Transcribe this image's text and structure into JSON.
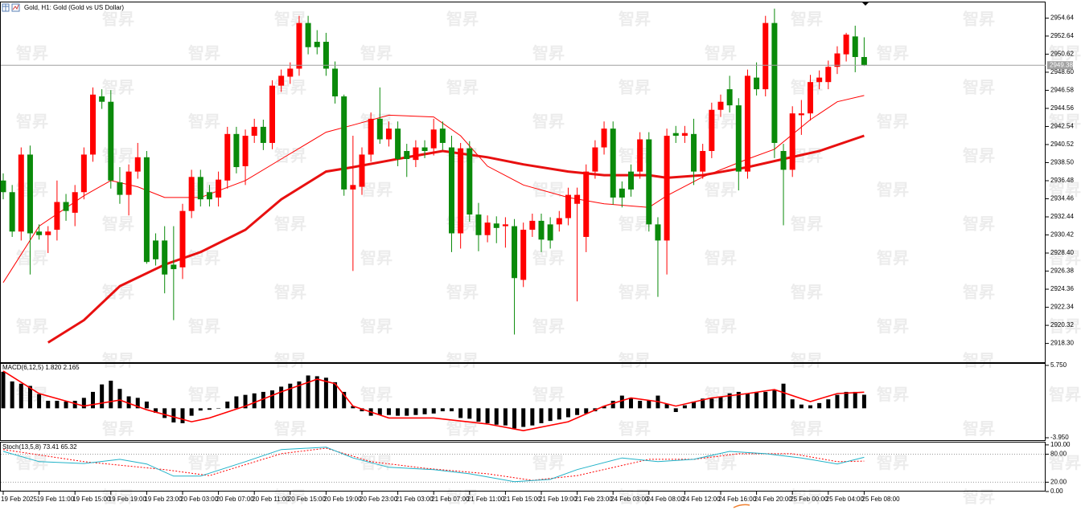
{
  "watermark": "智昇",
  "chart_data": [
    {
      "type": "candlestick",
      "title": "Gold, H1:  Gold (Gold vs US Dollar)",
      "up_color": "#ff0000",
      "down_color": "#0a8a0a",
      "ylim": [
        2916.2,
        2956.4
      ],
      "yticks": [
        2954.64,
        2952.64,
        2950.62,
        {
          "value": 2948.6,
          "label": "2948.60"
        },
        2946.58,
        2944.56,
        2942.54,
        2940.52,
        {
          "value": 2938.5,
          "label": "2938.50"
        },
        2936.48,
        2934.46,
        2932.44,
        2930.42,
        {
          "value": 2928.4,
          "label": "2928.40"
        },
        2926.38,
        2924.36,
        2922.34,
        2920.32,
        {
          "value": 2918.3,
          "label": "2918.30"
        }
      ],
      "ohlc": [
        [
          2936.5,
          2937.3,
          2934.4,
          2935.2
        ],
        [
          2935.2,
          2936.0,
          2930.2,
          2930.8
        ],
        [
          2930.8,
          2940.2,
          2929.8,
          2939.4
        ],
        [
          2939.4,
          2940.4,
          2926.0,
          2930.6
        ],
        [
          2930.8,
          2931.6,
          2929.9,
          2930.4
        ],
        [
          2930.4,
          2931.4,
          2928.4,
          2930.8
        ],
        [
          2931.0,
          2936.5,
          2929.8,
          2934.1
        ],
        [
          2934.1,
          2935.0,
          2932.0,
          2933.1
        ],
        [
          2932.9,
          2936.0,
          2931.4,
          2935.2
        ],
        [
          2935.2,
          2940.2,
          2934.4,
          2939.4
        ],
        [
          2939.4,
          2946.9,
          2938.6,
          2946.1
        ],
        [
          2945.9,
          2946.7,
          2944.5,
          2945.3
        ],
        [
          2945.3,
          2946.6,
          2935.6,
          2936.5
        ],
        [
          2936.3,
          2938.0,
          2933.9,
          2934.9
        ],
        [
          2934.9,
          2938.3,
          2932.6,
          2937.5
        ],
        [
          2937.5,
          2940.7,
          2936.7,
          2939.1
        ],
        [
          2939.1,
          2939.8,
          2927.2,
          2927.4
        ],
        [
          2929.8,
          2930.6,
          2927.0,
          2927.7
        ],
        [
          2929.8,
          2931.4,
          2923.9,
          2926.0
        ],
        [
          2927.1,
          2931.4,
          2920.9,
          2926.6
        ],
        [
          2926.8,
          2933.9,
          2925.5,
          2933.1
        ],
        [
          2933.1,
          2937.7,
          2932.3,
          2936.9
        ],
        [
          2936.9,
          2937.7,
          2933.6,
          2934.4
        ],
        [
          2935.2,
          2936.0,
          2933.6,
          2934.4
        ],
        [
          2934.6,
          2937.5,
          2933.6,
          2936.6
        ],
        [
          2936.5,
          2942.5,
          2935.6,
          2941.7
        ],
        [
          2941.7,
          2942.5,
          2937.3,
          2938.0
        ],
        [
          2938.1,
          2942.2,
          2936.0,
          2941.5
        ],
        [
          2941.5,
          2943.4,
          2940.7,
          2942.5
        ],
        [
          2942.5,
          2943.3,
          2939.9,
          2940.7
        ],
        [
          2940.7,
          2947.7,
          2940.0,
          2947.1
        ],
        [
          2947.1,
          2948.9,
          2946.4,
          2948.2
        ],
        [
          2948.1,
          2949.7,
          2947.3,
          2949.0
        ],
        [
          2949.0,
          2954.9,
          2948.2,
          2954.1
        ],
        [
          2954.1,
          2954.9,
          2950.6,
          2951.4
        ],
        [
          2952.0,
          2953.3,
          2950.6,
          2951.4
        ],
        [
          2952.0,
          2953.0,
          2948.2,
          2949.0
        ],
        [
          2949.0,
          2949.8,
          2945.1,
          2945.9
        ],
        [
          2945.9,
          2946.1,
          2934.8,
          2935.5
        ],
        [
          2935.5,
          2941.5,
          2926.4,
          2936.0
        ],
        [
          2935.8,
          2940.2,
          2934.9,
          2939.4
        ],
        [
          2939.4,
          2944.1,
          2938.6,
          2943.4
        ],
        [
          2943.4,
          2946.9,
          2940.6,
          2941.1
        ],
        [
          2941.1,
          2943.1,
          2940.3,
          2942.3
        ],
        [
          2942.3,
          2943.1,
          2938.1,
          2938.9
        ],
        [
          2939.8,
          2940.6,
          2936.9,
          2938.9
        ],
        [
          2938.8,
          2941.0,
          2938.0,
          2940.2
        ],
        [
          2940.2,
          2941.0,
          2939.0,
          2939.8
        ],
        [
          2940.1,
          2943.4,
          2939.3,
          2942.2
        ],
        [
          2942.3,
          2943.1,
          2939.9,
          2940.7
        ],
        [
          2940.2,
          2941.5,
          2928.5,
          2930.6
        ],
        [
          2930.6,
          2940.7,
          2928.9,
          2940.1
        ],
        [
          2940.1,
          2940.9,
          2931.9,
          2932.7
        ],
        [
          2932.7,
          2934.0,
          2928.6,
          2930.4
        ],
        [
          2930.4,
          2932.6,
          2929.6,
          2931.8
        ],
        [
          2931.7,
          2932.5,
          2929.5,
          2931.2
        ],
        [
          2931.4,
          2932.4,
          2929.0,
          2931.6
        ],
        [
          2931.4,
          2932.2,
          2919.3,
          2925.6
        ],
        [
          2925.4,
          2931.8,
          2924.6,
          2931.0
        ],
        [
          2931.0,
          2932.8,
          2930.2,
          2932.0
        ],
        [
          2932.0,
          2932.8,
          2928.5,
          2929.9
        ],
        [
          2931.6,
          2932.4,
          2928.9,
          2929.8
        ],
        [
          2931.6,
          2933.1,
          2930.8,
          2932.3
        ],
        [
          2932.3,
          2935.7,
          2931.5,
          2934.9
        ],
        [
          2933.9,
          2935.7,
          2923.0,
          2934.9
        ],
        [
          2930.2,
          2938.3,
          2928.5,
          2937.5
        ],
        [
          2937.5,
          2941.0,
          2936.7,
          2940.2
        ],
        [
          2940.2,
          2943.1,
          2939.4,
          2942.3
        ],
        [
          2942.3,
          2943.1,
          2933.8,
          2934.6
        ],
        [
          2935.6,
          2936.4,
          2933.5,
          2934.6
        ],
        [
          2937.5,
          2938.3,
          2934.7,
          2935.5
        ],
        [
          2937.5,
          2941.9,
          2936.7,
          2941.1
        ],
        [
          2941.1,
          2941.9,
          2930.8,
          2931.6
        ],
        [
          2931.6,
          2932.4,
          2923.5,
          2929.8
        ],
        [
          2929.8,
          2942.3,
          2926.0,
          2941.5
        ],
        [
          2941.8,
          2942.6,
          2940.7,
          2941.5
        ],
        [
          2941.5,
          2942.6,
          2940.7,
          2941.8
        ],
        [
          2941.7,
          2943.4,
          2936.0,
          2937.5
        ],
        [
          2937.5,
          2940.6,
          2936.7,
          2939.8
        ],
        [
          2939.8,
          2945.2,
          2939.0,
          2944.4
        ],
        [
          2944.4,
          2946.1,
          2943.6,
          2945.3
        ],
        [
          2946.7,
          2948.2,
          2944.1,
          2944.9
        ],
        [
          2944.9,
          2945.7,
          2935.4,
          2937.5
        ],
        [
          2937.5,
          2948.9,
          2936.7,
          2948.2
        ],
        [
          2948.0,
          2949.7,
          2946.0,
          2946.7
        ],
        [
          2946.7,
          2954.9,
          2945.9,
          2954.1
        ],
        [
          2954.1,
          2955.7,
          2939.0,
          2940.7
        ],
        [
          2939.8,
          2940.6,
          2931.5,
          2937.7
        ],
        [
          2937.7,
          2944.8,
          2936.9,
          2944.0
        ],
        [
          2943.8,
          2945.5,
          2941.6,
          2944.0
        ],
        [
          2944.0,
          2948.3,
          2943.2,
          2947.5
        ],
        [
          2947.5,
          2948.8,
          2946.7,
          2948.0
        ],
        [
          2947.5,
          2949.9,
          2946.7,
          2949.2
        ],
        [
          2949.2,
          2951.5,
          2948.4,
          2950.7
        ],
        [
          2950.6,
          2953.0,
          2949.8,
          2952.8
        ],
        [
          2952.6,
          2953.8,
          2948.6,
          2950.3
        ],
        [
          2950.3,
          2952.5,
          2949.3,
          2949.38
        ]
      ],
      "lines": [
        {
          "color": "#ff0000",
          "width": 1,
          "at": [
            0,
            4,
            9,
            12,
            15,
            18,
            22,
            27,
            31,
            36,
            39,
            43,
            48,
            51,
            54,
            58,
            63,
            67,
            72,
            74,
            78,
            83,
            86,
            90,
            93,
            96
          ],
          "values": [
            2925.1,
            2931.4,
            2934.8,
            2936.5,
            2935.8,
            2934.6,
            2934.6,
            2936.5,
            2938.9,
            2941.9,
            2942.7,
            2943.8,
            2943.6,
            2941.5,
            2938.1,
            2936.0,
            2934.6,
            2933.9,
            2933.5,
            2934.8,
            2936.9,
            2938.9,
            2940.0,
            2943.3,
            2945.3,
            2946.0
          ]
        },
        {
          "color": "#e81010",
          "width": 3,
          "at": [
            5,
            9,
            13,
            18,
            22,
            27,
            31,
            36,
            39,
            45,
            49,
            54,
            58,
            63,
            67,
            72,
            74,
            78,
            83,
            87,
            91,
            96
          ],
          "values": [
            2918.4,
            2920.9,
            2924.7,
            2927.1,
            2928.5,
            2931.0,
            2934.4,
            2937.5,
            2938.0,
            2939.1,
            2939.8,
            2939.1,
            2938.3,
            2937.5,
            2937.1,
            2937.1,
            2936.8,
            2937.1,
            2938.0,
            2938.9,
            2939.8,
            2941.5
          ]
        }
      ],
      "xlabels": [
        "19 Feb 2025",
        "19 Feb 11:00",
        "19 Feb 15:00",
        "19 Feb 19:00",
        "19 Feb 23:00",
        "20 Feb 03:00",
        "20 Feb 07:00",
        "20 Feb 11:00",
        "20 Feb 15:00",
        "20 Feb 19:00",
        "20 Feb 23:00",
        "21 Feb 03:00",
        "21 Feb 07:00",
        "21 Feb 11:00",
        "21 Feb 15:00",
        "21 Feb 19:00",
        "21 Feb 23:00",
        "24 Feb 03:00",
        "24 Feb 08:00",
        "24 Feb 12:00",
        "24 Feb 16:00",
        "24 Feb 20:00",
        "25 Feb 00:00",
        "25 Feb 04:00",
        "25 Feb 08:00"
      ]
    },
    {
      "type": "macd",
      "title": "MACD(6,12,5) 1.820 2.165",
      "color": "#000000",
      "signal_color": "#ff0000",
      "ylim": [
        -4.27,
        6.07
      ],
      "yticks": [
        {
          "value": 5.75,
          "label": "5.750"
        },
        {
          "value": -3.95,
          "label": "-3.950"
        }
      ],
      "values": [
        4.9,
        3.6,
        3.3,
        3.0,
        1.9,
        1.0,
        1.0,
        0.9,
        1.0,
        1.4,
        2.2,
        3.2,
        3.7,
        2.6,
        1.6,
        1.4,
        0.9,
        -0.6,
        -1.3,
        -1.9,
        -2.0,
        -1.0,
        -0.3,
        -0.2,
        0,
        0.9,
        1.6,
        1.8,
        2.0,
        2.2,
        2.4,
        2.9,
        3.3,
        3.6,
        4.4,
        4.3,
        4.1,
        3.5,
        2.2,
        0.3,
        -0.4,
        -1.0,
        -0.9,
        -0.9,
        -1.0,
        -1.0,
        -0.9,
        -0.8,
        -0.7,
        -0.4,
        -0.4,
        -1.3,
        -1.4,
        -1.8,
        -2.0,
        -2.2,
        -2.3,
        -2.7,
        -2.5,
        -2.3,
        -2.0,
        -1.7,
        -1.5,
        -1.2,
        -0.9,
        -0.7,
        -0.4,
        0.3,
        1.0,
        1.7,
        1.4,
        1.0,
        1.1,
        1.7,
        0.6,
        -0.5,
        0.4,
        0.9,
        1.3,
        1.3,
        1.6,
        2.0,
        2.2,
        2.0,
        2.2,
        2.2,
        2.4,
        3.3,
        1.2,
        0.5,
        0.4,
        0.7,
        1.2,
        1.8,
        2.2,
        2.2,
        1.82
      ],
      "signal": {
        "at": [
          0,
          4,
          9,
          13,
          16,
          21,
          23,
          27,
          31,
          35,
          37,
          39,
          43,
          48,
          54,
          58,
          63,
          67,
          70,
          73,
          75,
          79,
          83,
          86,
          90,
          93,
          96
        ],
        "values": [
          5.0,
          1.98,
          0.3,
          1.1,
          -0.2,
          -1.8,
          -1.3,
          0.3,
          2.2,
          3.9,
          3.3,
          0.3,
          -1.3,
          -1.3,
          -2.1,
          -3.0,
          -1.8,
          0.3,
          1.4,
          0.9,
          0.3,
          1.4,
          1.98,
          2.5,
          0.9,
          1.98,
          2.165
        ]
      }
    },
    {
      "type": "stoch",
      "title": "Stoch(13,5,8) 73.41 65.32",
      "ylim": [
        0,
        105
      ],
      "yticks": [
        {
          "value": 100,
          "label": "100.00"
        },
        {
          "value": 80,
          "label": "80.00"
        },
        {
          "value": 20,
          "label": "20.00"
        },
        {
          "value": 0,
          "label": "0.00"
        }
      ],
      "main": {
        "color": "#20b2c8",
        "at": [
          0,
          4,
          9,
          13,
          16,
          19,
          22,
          27,
          31,
          36,
          39,
          43,
          48,
          52,
          57,
          61,
          64,
          69,
          73,
          77,
          81,
          85,
          89,
          93,
          96
        ],
        "values": [
          86,
          64,
          60,
          69,
          59,
          33,
          33,
          64,
          90,
          95,
          72,
          52,
          47,
          38,
          21,
          26,
          47,
          72,
          64,
          69,
          86,
          81,
          72,
          59,
          73.41
        ]
      },
      "signal": {
        "color": "#ff0000",
        "at": [
          0,
          9,
          18,
          23,
          31,
          36,
          41,
          47,
          54,
          59,
          64,
          72,
          77,
          82,
          88,
          93,
          96
        ],
        "values": [
          90,
          64,
          47,
          34,
          81,
          93,
          64,
          50,
          38,
          24,
          34,
          69,
          69,
          81,
          81,
          64,
          65.32
        ]
      }
    }
  ]
}
